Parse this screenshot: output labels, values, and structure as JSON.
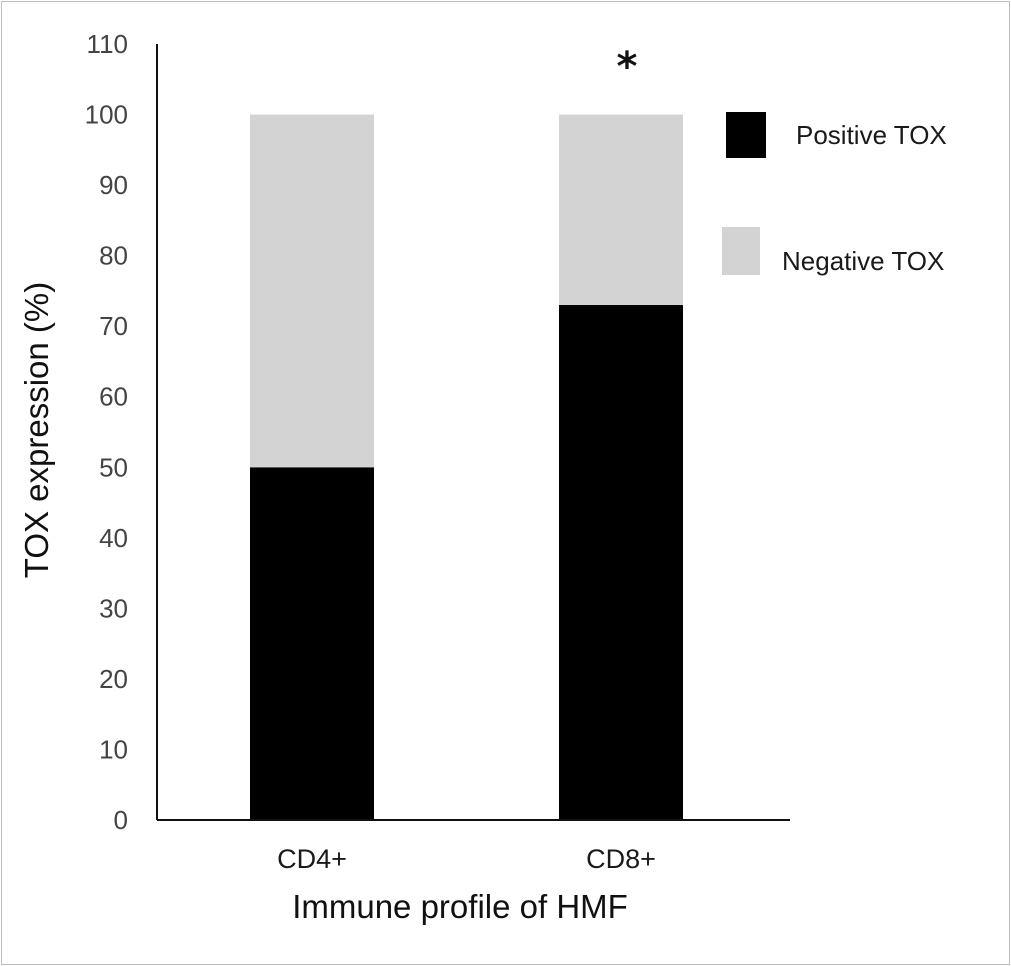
{
  "chart_data": {
    "type": "bar",
    "stacked": true,
    "categories": [
      "CD4+",
      "CD8+"
    ],
    "series": [
      {
        "name": "Positive TOX",
        "values": [
          50,
          73
        ],
        "color": "#000000"
      },
      {
        "name": "Negative TOX",
        "values": [
          50,
          27
        ],
        "color": "#d3d3d3"
      }
    ],
    "xlabel": "Immune profile of HMF",
    "ylabel": "TOX expression (%)",
    "ylim": [
      0,
      110
    ],
    "yticks": [
      0,
      10,
      20,
      30,
      40,
      50,
      60,
      70,
      80,
      90,
      100,
      110
    ],
    "grid": false,
    "legend_position": "right",
    "annotations": [
      {
        "category": "CD8+",
        "text": "*"
      }
    ]
  }
}
